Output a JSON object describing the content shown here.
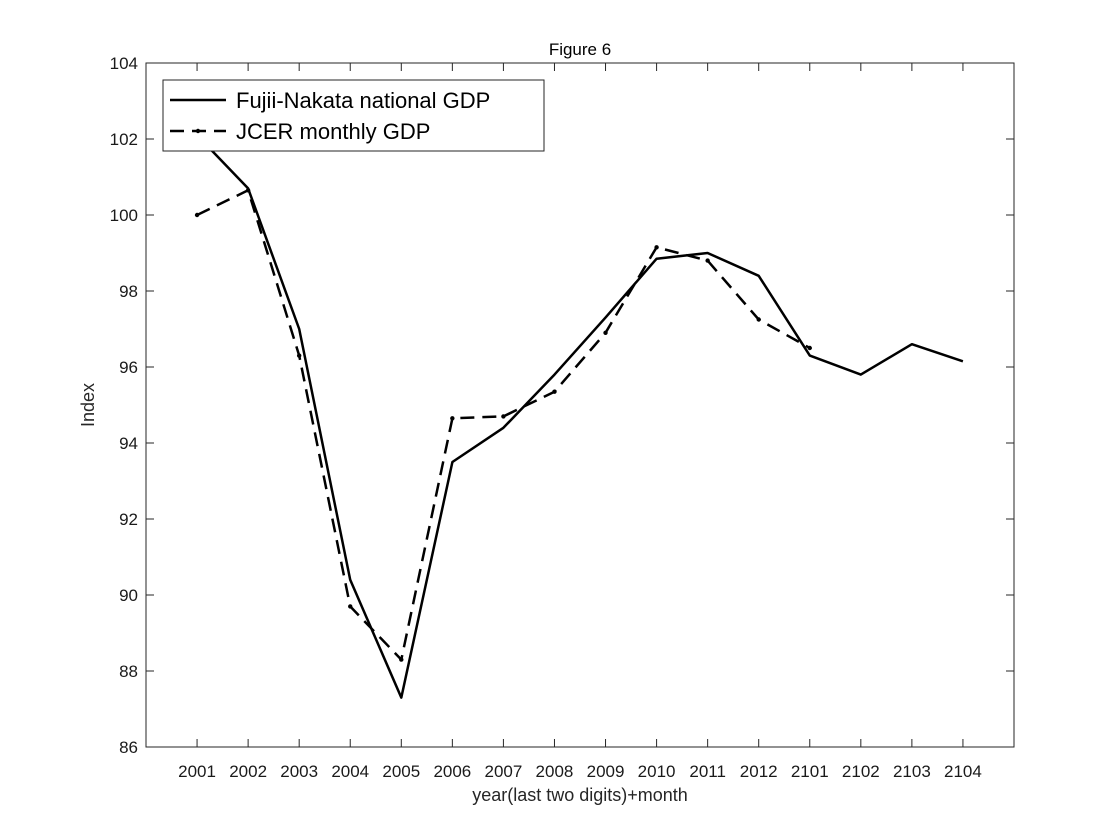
{
  "chart_data": {
    "type": "line",
    "title": "Figure 6",
    "xlabel": "year(last two digits)+month",
    "ylabel": "Index",
    "categories": [
      "2001",
      "2002",
      "2003",
      "2004",
      "2005",
      "2006",
      "2007",
      "2008",
      "2009",
      "2010",
      "2011",
      "2012",
      "2101",
      "2102",
      "2103",
      "2104"
    ],
    "ylim": [
      86,
      104
    ],
    "yticks": [
      86,
      88,
      90,
      92,
      94,
      96,
      98,
      100,
      102,
      104
    ],
    "legend_position": "top-left",
    "grid": false,
    "series": [
      {
        "name": "Fujii-Nakata national GDP",
        "style": "solid",
        "color": "#000000",
        "values": [
          102.1,
          100.7,
          97.0,
          90.4,
          87.3,
          93.5,
          94.4,
          95.8,
          97.3,
          98.85,
          99.0,
          98.4,
          96.3,
          95.8,
          96.6,
          96.15
        ]
      },
      {
        "name": "JCER monthly GDP",
        "style": "dashed",
        "color": "#000000",
        "values": [
          100.0,
          100.65,
          96.3,
          89.7,
          88.3,
          94.65,
          94.7,
          95.35,
          96.9,
          99.15,
          98.8,
          97.25,
          96.5,
          null,
          null,
          null
        ]
      }
    ]
  }
}
